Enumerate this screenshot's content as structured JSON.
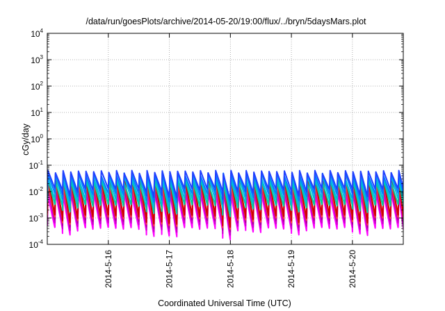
{
  "chart_data": {
    "type": "line",
    "title": "/data/run/goesPlots/archive/2014-05-20/19:00/flux/../bryn/5daysMars.plot",
    "xlabel": "Coordinated Universal Time (UTC)",
    "ylabel": "cGy/day",
    "yscale": "log",
    "ylim": [
      0.0001,
      10000
    ],
    "xlim": [
      "2014-05-15 00:00",
      "2014-05-20 20:00"
    ],
    "grid": true,
    "x_ticks": [
      "2014-5-16",
      "2014-5-17",
      "2014-5-18",
      "2014-5-19",
      "2014-5-20"
    ],
    "y_ticks": [
      {
        "base": "10",
        "exp": "-4"
      },
      {
        "base": "10",
        "exp": "-3"
      },
      {
        "base": "10",
        "exp": "-2"
      },
      {
        "base": "10",
        "exp": "-1"
      },
      {
        "base": "10",
        "exp": "0"
      },
      {
        "base": "10",
        "exp": "1"
      },
      {
        "base": "10",
        "exp": "2"
      },
      {
        "base": "10",
        "exp": "3"
      },
      {
        "base": "10",
        "exp": "4"
      }
    ],
    "pattern": {
      "description_free": true,
      "cycles_per_day": 8,
      "peak_approx": 0.05,
      "trough_min_approx": 0.0004
    },
    "series": [
      {
        "color": "#ff00ff",
        "peak": 0.008,
        "trough": 0.0004
      },
      {
        "color": "#cc00cc",
        "peak": 0.012,
        "trough": 0.0006
      },
      {
        "color": "#b0009a",
        "peak": 0.016,
        "trough": 0.0008
      },
      {
        "color": "#ff4040",
        "peak": 0.02,
        "trough": 0.001
      },
      {
        "color": "#d00000",
        "peak": 0.03,
        "trough": 0.0012
      },
      {
        "color": "#00d0a0",
        "peak": 0.025,
        "trough": 0.003
      },
      {
        "color": "#00b8e0",
        "peak": 0.035,
        "trough": 0.005
      },
      {
        "color": "#0080ff",
        "peak": 0.045,
        "trough": 0.008
      },
      {
        "color": "#2040ff",
        "peak": 0.055,
        "trough": 0.012
      }
    ],
    "dips": [
      {
        "day": 0.4,
        "factor": 0.5
      },
      {
        "day": 1.75,
        "factor": 0.45
      },
      {
        "day": 2.05,
        "factor": 0.25
      },
      {
        "day": 3.0,
        "factor": 0.35
      },
      {
        "day": 3.45,
        "factor": 0.6
      },
      {
        "day": 4.1,
        "factor": 0.5
      },
      {
        "day": 5.2,
        "factor": 0.4
      }
    ]
  }
}
